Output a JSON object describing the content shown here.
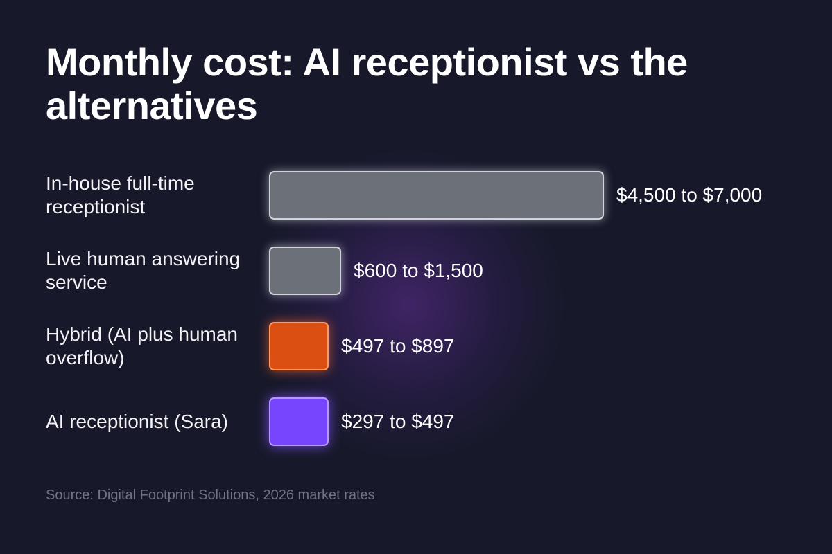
{
  "chart_data": {
    "type": "bar",
    "orientation": "horizontal",
    "title": "Monthly cost: AI receptionist vs the alternatives",
    "categories": [
      "In-house full-time receptionist",
      "Live human answering service",
      "Hybrid (AI plus human overflow)",
      "AI receptionist (Sara)"
    ],
    "values": [
      7000,
      1500,
      897,
      497
    ],
    "ranges": [
      [
        4500,
        7000
      ],
      [
        600,
        1500
      ],
      [
        497,
        897
      ],
      [
        297,
        497
      ]
    ],
    "value_labels": [
      "$4,500 to $7,000",
      "$600 to $1,500",
      "$497 to $897",
      "$297 to $497"
    ],
    "bar_colors": [
      "#6b7079",
      "#6b7079",
      "#dc4f12",
      "#7845ff"
    ],
    "xlabel": "",
    "ylabel": "",
    "legend": "none",
    "grid": false,
    "source": "Source: Digital Footprint Solutions, 2026 market rates"
  }
}
